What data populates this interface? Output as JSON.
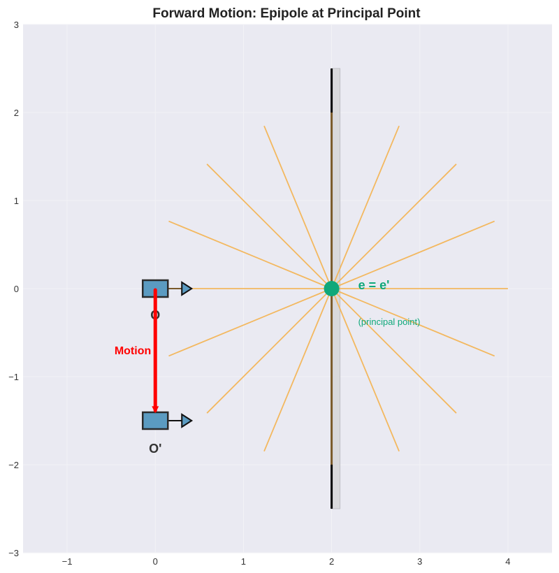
{
  "chart_data": {
    "type": "diagram",
    "title": "Forward Motion: Epipole at Principal Point",
    "xlim": [
      -1.5,
      4.5
    ],
    "ylim": [
      -3,
      3
    ],
    "x_ticks": [
      -1,
      0,
      1,
      2,
      3,
      4
    ],
    "x_tick_labels": [
      "−1",
      "0",
      "1",
      "2",
      "3",
      "4"
    ],
    "y_ticks": [
      -3,
      -2,
      -1,
      0,
      1,
      2,
      3
    ],
    "y_tick_labels": [
      "−3",
      "−2",
      "−1",
      "0",
      "1",
      "2",
      "3"
    ],
    "grid": true,
    "colors": {
      "background": "#eaeaf2",
      "camera_fill": "#5b9bc1",
      "camera_edge": "#2b2b2b",
      "motion": "#ff0000",
      "epipole": "#0fa87a",
      "epipolar_lines": "#f5b350",
      "image_plane_fill": "#d9d9dc",
      "image_plane_line": "#7a5a2a",
      "image_plane_ends": "#000000"
    },
    "cameras": [
      {
        "label": "O",
        "x": 0,
        "y": 0
      },
      {
        "label": "O'",
        "x": 0,
        "y": -1.5
      }
    ],
    "motion": {
      "label": "Motion",
      "from": [
        0,
        0
      ],
      "to": [
        0,
        -1.4
      ]
    },
    "image_plane": {
      "x": 2,
      "y_min": -2.5,
      "y_max": 2.5,
      "inner_y_min": -2,
      "inner_y_max": 2
    },
    "epipole": {
      "x": 2,
      "y": 0,
      "label": "e = e'",
      "sublabel": "(principal point)"
    },
    "epipolar_lines": {
      "center": [
        2,
        0
      ],
      "length": 2,
      "angles_deg": [
        0,
        22.5,
        45,
        67.5,
        112.5,
        135,
        157.5,
        180,
        202.5,
        225,
        247.5,
        292.5,
        315,
        337.5
      ]
    }
  }
}
